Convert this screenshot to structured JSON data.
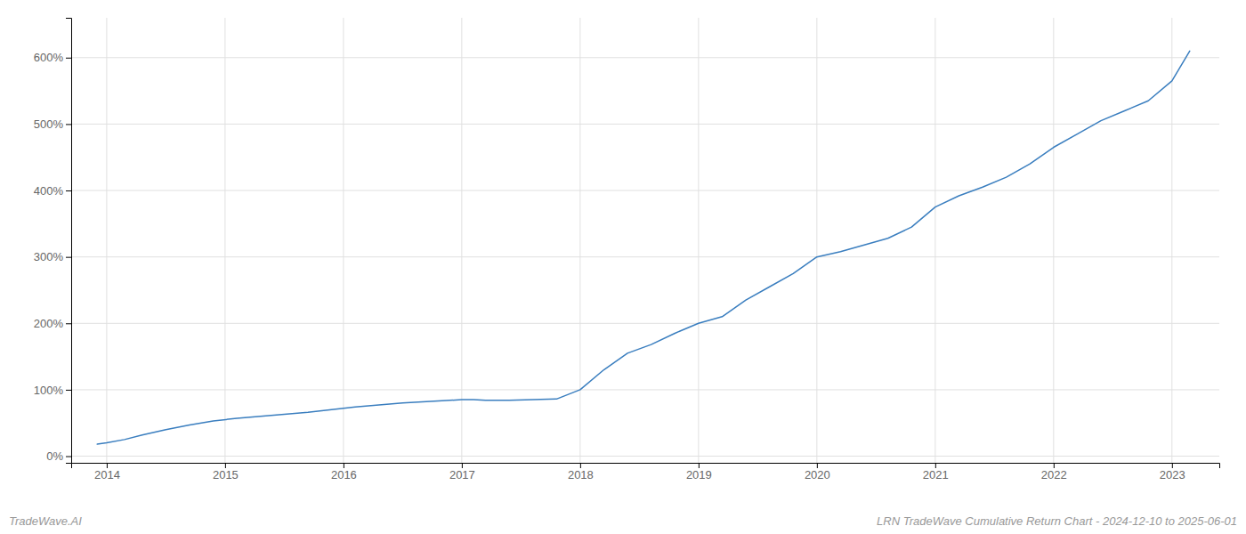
{
  "chart_data": {
    "type": "line",
    "title": "LRN TradeWave Cumulative Return Chart - 2024-12-10 to 2025-06-01",
    "annotations": [
      "TradeWave.AI"
    ],
    "x": [
      2013.92,
      2014.0,
      2014.15,
      2014.3,
      2014.5,
      2014.7,
      2014.9,
      2015.1,
      2015.3,
      2015.5,
      2015.7,
      2015.9,
      2016.1,
      2016.3,
      2016.5,
      2016.7,
      2016.9,
      2017.0,
      2017.1,
      2017.2,
      2017.4,
      2017.6,
      2017.8,
      2018.0,
      2018.2,
      2018.4,
      2018.6,
      2018.8,
      2019.0,
      2019.2,
      2019.4,
      2019.6,
      2019.8,
      2020.0,
      2020.2,
      2020.4,
      2020.6,
      2020.8,
      2021.0,
      2021.2,
      2021.4,
      2021.6,
      2021.8,
      2022.0,
      2022.2,
      2022.4,
      2022.6,
      2022.8,
      2023.0,
      2023.15
    ],
    "values": [
      18,
      20,
      25,
      32,
      40,
      47,
      53,
      57,
      60,
      63,
      66,
      70,
      74,
      77,
      80,
      82,
      84,
      85,
      85,
      84,
      84,
      85,
      86,
      100,
      130,
      155,
      168,
      185,
      200,
      210,
      235,
      255,
      275,
      300,
      308,
      318,
      328,
      345,
      375,
      392,
      405,
      420,
      440,
      465,
      485,
      505,
      520,
      535,
      565,
      610
    ],
    "color": "#3a7ebf",
    "xlim": [
      2013.7,
      2023.4
    ],
    "xticks": [
      2014,
      2015,
      2016,
      2017,
      2018,
      2019,
      2020,
      2021,
      2022,
      2023
    ],
    "ylim": [
      -10,
      660
    ],
    "yticks": [
      {
        "value": 0,
        "label": "0%"
      },
      {
        "value": 100,
        "label": "100%"
      },
      {
        "value": 200,
        "label": "200%"
      },
      {
        "value": 300,
        "label": "300%"
      },
      {
        "value": 400,
        "label": "400%"
      },
      {
        "value": 500,
        "label": "500%"
      },
      {
        "value": 600,
        "label": "600%"
      }
    ],
    "grid": true
  }
}
